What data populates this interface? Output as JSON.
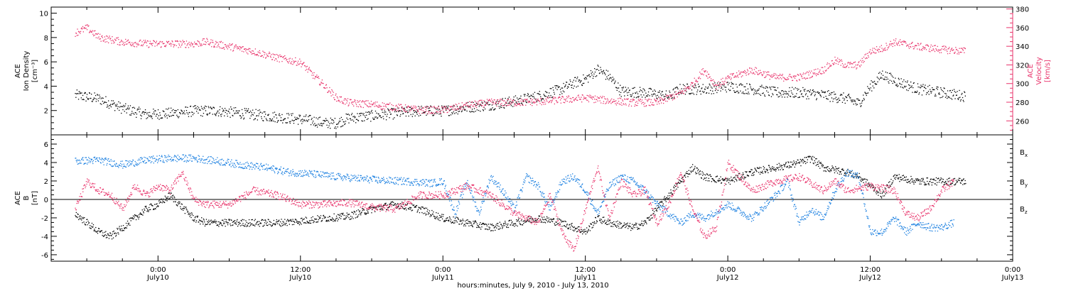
{
  "chart_data": [
    {
      "type": "scatter",
      "panel": "top",
      "left_axis": {
        "label_lines": [
          "ACE",
          "Ion Density",
          "[cm⁻³]"
        ],
        "ylim": [
          0,
          10.5
        ],
        "tick_values": [
          2,
          4,
          6,
          8,
          10
        ],
        "color": "#000000"
      },
      "right_axis": {
        "label_lines": [
          "ACE",
          "Velocity",
          "[km/s]"
        ],
        "ylim": [
          245,
          382
        ],
        "tick_values": [
          260,
          280,
          300,
          320,
          340,
          360,
          380
        ],
        "color": "#e8336b"
      },
      "series": [
        {
          "axis": "left",
          "color": "#000000",
          "points": [
            [
              -7,
              3.3
            ],
            [
              -5,
              3.0
            ],
            [
              -3,
              2.2
            ],
            [
              -1,
              1.7
            ],
            [
              1,
              1.8
            ],
            [
              3,
              2.0
            ],
            [
              5,
              2.0
            ],
            [
              7,
              1.8
            ],
            [
              9,
              1.6
            ],
            [
              11,
              1.4
            ],
            [
              13,
              1.2
            ],
            [
              14,
              1.0
            ],
            [
              15,
              1.0
            ],
            [
              16,
              1.4
            ],
            [
              18,
              1.6
            ],
            [
              20,
              1.8
            ],
            [
              22,
              2.0
            ],
            [
              24,
              2.0
            ],
            [
              26,
              2.3
            ],
            [
              28,
              2.5
            ],
            [
              30,
              2.8
            ],
            [
              32,
              3.2
            ],
            [
              34,
              3.8
            ],
            [
              35,
              4.3
            ],
            [
              36,
              4.6
            ],
            [
              37,
              5.4
            ],
            [
              38,
              4.8
            ],
            [
              39,
              3.6
            ],
            [
              41,
              3.5
            ],
            [
              43,
              3.2
            ],
            [
              44,
              3.8
            ],
            [
              46,
              3.8
            ],
            [
              48,
              4.0
            ],
            [
              50,
              3.8
            ],
            [
              52,
              3.5
            ],
            [
              54,
              3.5
            ],
            [
              56,
              3.3
            ],
            [
              58,
              3.0
            ],
            [
              59,
              2.6
            ],
            [
              60,
              4.0
            ],
            [
              61,
              5.0
            ],
            [
              62,
              4.5
            ],
            [
              64,
              3.8
            ],
            [
              66,
              3.5
            ],
            [
              68,
              3.2
            ]
          ]
        },
        {
          "axis": "right",
          "color": "#e8336b",
          "points": [
            [
              -7,
              355
            ],
            [
              -6,
              360
            ],
            [
              -5,
              350
            ],
            [
              -3,
              345
            ],
            [
              -1,
              343
            ],
            [
              1,
              343
            ],
            [
              3,
              343
            ],
            [
              4,
              345
            ],
            [
              6,
              340
            ],
            [
              8,
              335
            ],
            [
              10,
              328
            ],
            [
              12,
              323
            ],
            [
              13,
              310
            ],
            [
              14,
              298
            ],
            [
              15,
              285
            ],
            [
              16,
              280
            ],
            [
              18,
              278
            ],
            [
              20,
              275
            ],
            [
              22,
              272
            ],
            [
              24,
              272
            ],
            [
              26,
              277
            ],
            [
              28,
              280
            ],
            [
              30,
              280
            ],
            [
              32,
              281
            ],
            [
              34,
              283
            ],
            [
              36,
              285
            ],
            [
              38,
              282
            ],
            [
              40,
              280
            ],
            [
              42,
              280
            ],
            [
              44,
              290
            ],
            [
              45,
              300
            ],
            [
              46,
              315
            ],
            [
              47,
              298
            ],
            [
              48,
              306
            ],
            [
              50,
              315
            ],
            [
              52,
              307
            ],
            [
              54,
              307
            ],
            [
              56,
              315
            ],
            [
              57,
              325
            ],
            [
              58,
              320
            ],
            [
              59,
              320
            ],
            [
              60,
              335
            ],
            [
              61,
              338
            ],
            [
              62,
              345
            ],
            [
              64,
              340
            ],
            [
              66,
              337
            ],
            [
              68,
              335
            ]
          ]
        }
      ]
    },
    {
      "type": "scatter",
      "panel": "bottom",
      "left_axis": {
        "label_lines": [
          "ACE",
          "B",
          "[nT]"
        ],
        "ylim": [
          -6.7,
          7.0
        ],
        "tick_values": [
          -6,
          -4,
          -2,
          0,
          2,
          4,
          6
        ],
        "color": "#000000"
      },
      "legend": [
        {
          "label": "B",
          "sub": "x",
          "color": "#000000"
        },
        {
          "label": "B",
          "sub": "y",
          "color": "#1a7fe0"
        },
        {
          "label": "B",
          "sub": "z",
          "color": "#e8336b"
        }
      ],
      "series": [
        {
          "name": "Bx",
          "color": "#000000",
          "points": [
            [
              -7,
              -1.5
            ],
            [
              -6,
              -2.5
            ],
            [
              -5,
              -3.5
            ],
            [
              -4,
              -4.0
            ],
            [
              -3,
              -3.0
            ],
            [
              -2,
              -2.0
            ],
            [
              -1,
              -1.0
            ],
            [
              0,
              -0.5
            ],
            [
              1,
              0.5
            ],
            [
              2,
              -0.8
            ],
            [
              3,
              -2.0
            ],
            [
              4,
              -2.5
            ],
            [
              6,
              -2.5
            ],
            [
              8,
              -2.5
            ],
            [
              10,
              -2.5
            ],
            [
              12,
              -2.3
            ],
            [
              14,
              -2.0
            ],
            [
              16,
              -1.8
            ],
            [
              18,
              -1.0
            ],
            [
              20,
              -0.5
            ],
            [
              22,
              -1.0
            ],
            [
              24,
              -2.0
            ],
            [
              26,
              -2.5
            ],
            [
              28,
              -3.0
            ],
            [
              30,
              -2.5
            ],
            [
              32,
              -2.0
            ],
            [
              34,
              -2.5
            ],
            [
              36,
              -3.5
            ],
            [
              37,
              -2.0
            ],
            [
              38,
              -2.5
            ],
            [
              40,
              -3.0
            ],
            [
              41,
              -2.5
            ],
            [
              42,
              -1.0
            ],
            [
              43,
              0.5
            ],
            [
              44,
              2.0
            ],
            [
              45,
              3.5
            ],
            [
              46,
              2.5
            ],
            [
              48,
              2.0
            ],
            [
              50,
              3.0
            ],
            [
              52,
              3.5
            ],
            [
              54,
              4.0
            ],
            [
              55,
              4.5
            ],
            [
              56,
              3.5
            ],
            [
              58,
              3.0
            ],
            [
              59,
              2.5
            ],
            [
              60,
              1.5
            ],
            [
              61,
              0.5
            ],
            [
              62,
              2.5
            ],
            [
              64,
              2.0
            ],
            [
              66,
              2.0
            ],
            [
              68,
              2.0
            ]
          ]
        },
        {
          "name": "By",
          "color": "#1a7fe0",
          "points": [
            [
              -7,
              4.2
            ],
            [
              -5,
              4.3
            ],
            [
              -3,
              3.8
            ],
            [
              -1,
              4.3
            ],
            [
              1,
              4.5
            ],
            [
              3,
              4.5
            ],
            [
              5,
              4.2
            ],
            [
              7,
              3.8
            ],
            [
              9,
              3.5
            ],
            [
              11,
              3.0
            ],
            [
              13,
              2.8
            ],
            [
              15,
              2.5
            ],
            [
              17,
              2.3
            ],
            [
              19,
              2.1
            ],
            [
              21,
              2.0
            ],
            [
              23,
              1.8
            ],
            [
              24,
              2.0
            ],
            [
              25,
              -1.5
            ],
            [
              26,
              2.0
            ],
            [
              27,
              -1.5
            ],
            [
              28,
              2.5
            ],
            [
              29,
              1.0
            ],
            [
              30,
              -1.0
            ],
            [
              31,
              2.5
            ],
            [
              32,
              1.5
            ],
            [
              33,
              -1.0
            ],
            [
              34,
              2.0
            ],
            [
              35,
              2.5
            ],
            [
              36,
              1.0
            ],
            [
              37,
              -1.5
            ],
            [
              38,
              1.5
            ],
            [
              39,
              2.5
            ],
            [
              40,
              2.0
            ],
            [
              41,
              1.0
            ],
            [
              42,
              -0.5
            ],
            [
              43,
              -1.5
            ],
            [
              44,
              -2.5
            ],
            [
              45,
              -1.5
            ],
            [
              46,
              -2.0
            ],
            [
              48,
              -0.5
            ],
            [
              50,
              -2.0
            ],
            [
              52,
              0.5
            ],
            [
              53,
              2.0
            ],
            [
              54,
              -2.5
            ],
            [
              55,
              -1.0
            ],
            [
              56,
              -2.0
            ],
            [
              57,
              1.0
            ],
            [
              58,
              3.0
            ],
            [
              59,
              2.5
            ],
            [
              60,
              -3.5
            ],
            [
              61,
              -3.5
            ],
            [
              62,
              -2.0
            ],
            [
              63,
              -3.5
            ],
            [
              64,
              -2.5
            ],
            [
              65,
              -3.0
            ],
            [
              66,
              -3.0
            ],
            [
              67,
              -2.5
            ]
          ]
        },
        {
          "name": "Bz",
          "color": "#e8336b",
          "points": [
            [
              -7,
              -1.0
            ],
            [
              -6,
              2.0
            ],
            [
              -5,
              1.0
            ],
            [
              -4,
              0.5
            ],
            [
              -3,
              -1.0
            ],
            [
              -2,
              1.5
            ],
            [
              -1,
              0.5
            ],
            [
              0,
              1.5
            ],
            [
              1,
              1.0
            ],
            [
              2,
              3.0
            ],
            [
              3,
              0.0
            ],
            [
              4,
              -0.5
            ],
            [
              6,
              -0.5
            ],
            [
              8,
              1.0
            ],
            [
              10,
              0.5
            ],
            [
              12,
              -0.5
            ],
            [
              14,
              -0.5
            ],
            [
              16,
              -0.3
            ],
            [
              18,
              -0.8
            ],
            [
              20,
              -1.0
            ],
            [
              22,
              0.5
            ],
            [
              24,
              0.5
            ],
            [
              26,
              1.5
            ],
            [
              28,
              0.5
            ],
            [
              30,
              -1.5
            ],
            [
              32,
              -2.5
            ],
            [
              33,
              0.5
            ],
            [
              34,
              -3.5
            ],
            [
              35,
              -5.5
            ],
            [
              36,
              -1.0
            ],
            [
              37,
              3.5
            ],
            [
              38,
              -2.0
            ],
            [
              39,
              2.0
            ],
            [
              40,
              0.5
            ],
            [
              41,
              1.0
            ],
            [
              42,
              -2.5
            ],
            [
              43,
              -0.5
            ],
            [
              44,
              3.0
            ],
            [
              45,
              -1.0
            ],
            [
              46,
              -4.0
            ],
            [
              47,
              -3.0
            ],
            [
              48,
              4.0
            ],
            [
              50,
              1.0
            ],
            [
              52,
              2.0
            ],
            [
              54,
              2.5
            ],
            [
              56,
              1.0
            ],
            [
              57,
              2.0
            ],
            [
              58,
              1.0
            ],
            [
              60,
              1.5
            ],
            [
              62,
              1.0
            ],
            [
              63,
              -1.5
            ],
            [
              64,
              -2.0
            ],
            [
              65,
              -1.0
            ],
            [
              66,
              1.0
            ],
            [
              67,
              2.0
            ]
          ]
        }
      ]
    }
  ],
  "x_axis": {
    "xlim": [
      -9,
      72
    ],
    "ticks": [
      {
        "hours": 0,
        "time": "0:00",
        "date": "July10"
      },
      {
        "hours": 12,
        "time": "12:00",
        "date": "July10"
      },
      {
        "hours": 24,
        "time": "0:00",
        "date": "July11"
      },
      {
        "hours": 36,
        "time": "12:00",
        "date": "July11"
      },
      {
        "hours": 48,
        "time": "0:00",
        "date": "July12"
      },
      {
        "hours": 60,
        "time": "12:00",
        "date": "July12"
      },
      {
        "hours": 72,
        "time": "0:00",
        "date": "July13"
      }
    ],
    "title": "hours:minutes, July  9, 2010 - July 13, 2010"
  }
}
